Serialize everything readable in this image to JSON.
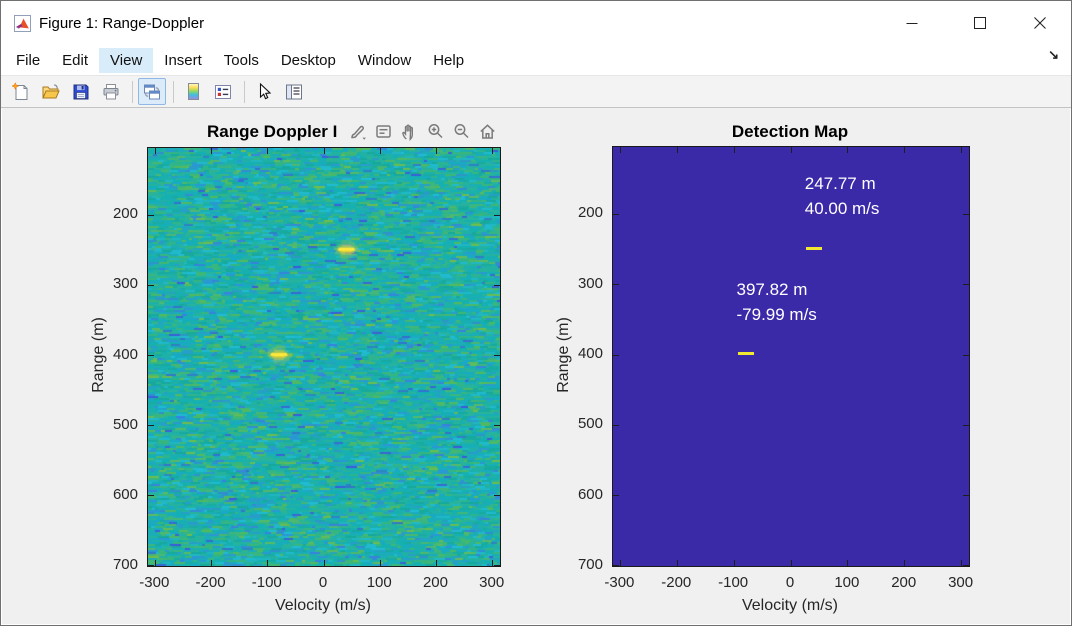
{
  "window": {
    "title": "Figure 1: Range-Doppler",
    "controls": {
      "minimize": "minimize",
      "maximize": "maximize",
      "close": "close"
    }
  },
  "menu": {
    "items": [
      "File",
      "Edit",
      "View",
      "Insert",
      "Tools",
      "Desktop",
      "Window",
      "Help"
    ],
    "active_item": "View",
    "dock_arrow": "↘"
  },
  "toolbar": {
    "buttons": [
      "new-figure",
      "open-file",
      "save-figure",
      "print-figure",
      "link-plot",
      "insert-colorbar",
      "insert-legend",
      "edit-plot",
      "property-inspector"
    ],
    "active_button": "link-plot"
  },
  "axes_toolbar": {
    "buttons": [
      "brush",
      "data-tips",
      "pan",
      "zoom-in",
      "zoom-out",
      "restore-view"
    ]
  },
  "colors": {
    "figure_bg": "#f0f0f0",
    "menu_highlight": "#d9ecf9",
    "axes_text": "#262626",
    "detection_bg": "#3a2aa8",
    "detection_marker": "#f2e832",
    "annotation_text": "#ffffff",
    "noise_base": "#1fb1a7",
    "noise_palette": [
      "#12b0b6",
      "#29b49a",
      "#3db873",
      "#57bb58",
      "#74bf46",
      "#18a9c8",
      "#2b95d8",
      "#3a7de2",
      "#21bcd8",
      "#15a79b",
      "#3c55dd"
    ],
    "blip_core": "#ffe93c",
    "blip_mid": "#e8cf35",
    "blip_halo": "#b8c94a"
  },
  "chart_data": [
    {
      "type": "heatmap",
      "title": "Range Doppler I",
      "xlabel": "Velocity (m/s)",
      "ylabel": "Range (m)",
      "xticks": [
        -300,
        -200,
        -100,
        0,
        100,
        200,
        300
      ],
      "yticks": [
        200,
        300,
        400,
        500,
        600,
        700
      ],
      "xlim": [
        -313,
        313
      ],
      "ylim": [
        104,
        700
      ],
      "colormap": "parula-noise",
      "points": [
        {
          "range_m": 247.77,
          "velocity_mps": 40.0
        },
        {
          "range_m": 397.82,
          "velocity_mps": -79.99
        }
      ]
    },
    {
      "type": "heatmap",
      "title": "Detection Map",
      "xlabel": "Velocity (m/s)",
      "ylabel": "Range (m)",
      "xticks": [
        -300,
        -200,
        -100,
        0,
        100,
        200,
        300
      ],
      "yticks": [
        200,
        300,
        400,
        500,
        600,
        700
      ],
      "xlim": [
        -313,
        313
      ],
      "ylim": [
        104,
        700
      ],
      "detections": [
        {
          "range_label": "247.77 m",
          "velocity_label": "40.00 m/s",
          "range_m": 247.77,
          "velocity_mps": 40.0
        },
        {
          "range_label": "397.82 m",
          "velocity_label": "-79.99 m/s",
          "range_m": 397.82,
          "velocity_mps": -79.99
        }
      ]
    }
  ]
}
